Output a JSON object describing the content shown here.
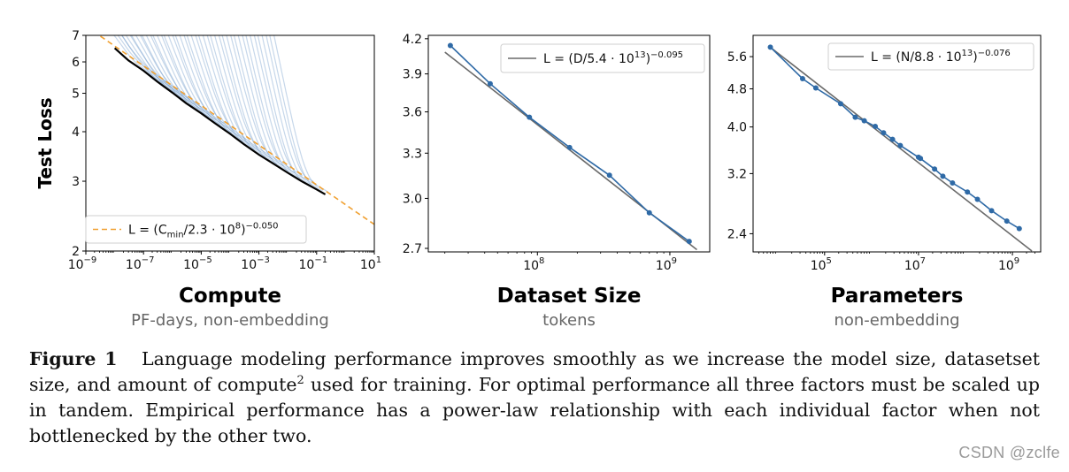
{
  "chart_data": [
    {
      "type": "line",
      "xscale": "log",
      "yscale": "log",
      "xlim": [
        1e-09,
        10
      ],
      "ylim": [
        2,
        7
      ],
      "x_ticks": [
        {
          "value": 1e-09,
          "mantissa": "10",
          "exp": "−9"
        },
        {
          "value": 1e-07,
          "mantissa": "10",
          "exp": "−7"
        },
        {
          "value": 1e-05,
          "mantissa": "10",
          "exp": "−5"
        },
        {
          "value": 0.001,
          "mantissa": "10",
          "exp": "−3"
        },
        {
          "value": 0.1,
          "mantissa": "10",
          "exp": "−1"
        },
        {
          "value": 10,
          "mantissa": "10",
          "exp": "1"
        }
      ],
      "y_ticks": [
        {
          "value": 2,
          "label": "2"
        },
        {
          "value": 3,
          "label": "3"
        },
        {
          "value": 4,
          "label": "4"
        },
        {
          "value": 5,
          "label": "5"
        },
        {
          "value": 6,
          "label": "6"
        },
        {
          "value": 7,
          "label": "7"
        }
      ],
      "ylabel": "Test Loss",
      "xlabel": "Compute",
      "sublabel": "PF-days, non-embedding",
      "legend": {
        "placement": "lower-left",
        "label": {
          "pre": "L = (C",
          "sub": "min",
          "mid": "/2.3 · 10",
          "sup1": "8",
          "post": ")",
          "sup2": "−0.050"
        }
      },
      "fit": {
        "c": 230000000.0,
        "alpha": 0.05,
        "x_range": [
          1e-09,
          10
        ],
        "color": "#f0a030",
        "style": "dashed"
      },
      "frontier": {
        "color": "#000000",
        "x": [
          1e-08,
          3e-08,
          1e-07,
          3e-07,
          1e-06,
          3e-06,
          1e-05,
          3e-05,
          0.0001,
          0.0003,
          0.001,
          0.003,
          0.01,
          0.03,
          0.1,
          0.2
        ],
        "y": [
          6.5,
          6.05,
          5.7,
          5.35,
          5.02,
          4.72,
          4.45,
          4.2,
          3.95,
          3.72,
          3.5,
          3.33,
          3.15,
          3.0,
          2.86,
          2.78
        ]
      },
      "training_curves": {
        "color": "#5b8cc4",
        "count": 44,
        "description_free": true
      }
    },
    {
      "type": "line",
      "xscale": "log",
      "yscale": "log",
      "xlim": [
        15000000.0,
        2000000000.0
      ],
      "ylim": [
        2.68,
        4.23
      ],
      "x_ticks": [
        {
          "value": 100000000.0,
          "mantissa": "10",
          "exp": "8"
        },
        {
          "value": 1000000000.0,
          "mantissa": "10",
          "exp": "9"
        }
      ],
      "y_ticks": [
        {
          "value": 2.7,
          "label": "2.7"
        },
        {
          "value": 3.0,
          "label": "3.0"
        },
        {
          "value": 3.3,
          "label": "3.3"
        },
        {
          "value": 3.6,
          "label": "3.6"
        },
        {
          "value": 3.9,
          "label": "3.9"
        },
        {
          "value": 4.2,
          "label": "4.2"
        }
      ],
      "xlabel": "Dataset Size",
      "sublabel": "tokens",
      "legend": {
        "placement": "top-right",
        "label": {
          "pre": "L = (D/5.4 · 10",
          "sup1": "13",
          "post": ")",
          "sup2": "−0.095"
        }
      },
      "fit": {
        "c": 54000000000000.0,
        "alpha": 0.095,
        "x_range": [
          20000000.0,
          1600000000.0
        ],
        "color": "#6a6a6a"
      },
      "series": [
        {
          "name": "data",
          "color": "#2f6aa6",
          "x": [
            22000000.0,
            44000000.0,
            87000000.0,
            175000000.0,
            350000000.0,
            700000000.0,
            1400000000.0
          ],
          "y": [
            4.14,
            3.82,
            3.56,
            3.34,
            3.15,
            2.91,
            2.74
          ]
        }
      ]
    },
    {
      "type": "line",
      "xscale": "log",
      "yscale": "log",
      "xlim": [
        3000.0,
        4000000000.0
      ],
      "ylim": [
        2.2,
        6.2
      ],
      "x_ticks": [
        {
          "value": 100000.0,
          "mantissa": "10",
          "exp": "5"
        },
        {
          "value": 10000000.0,
          "mantissa": "10",
          "exp": "7"
        },
        {
          "value": 1000000000.0,
          "mantissa": "10",
          "exp": "9"
        }
      ],
      "y_ticks": [
        {
          "value": 2.4,
          "label": "2.4"
        },
        {
          "value": 3.2,
          "label": "3.2"
        },
        {
          "value": 4.0,
          "label": "4.0"
        },
        {
          "value": 4.8,
          "label": "4.8"
        },
        {
          "value": 5.6,
          "label": "5.6"
        }
      ],
      "xlabel": "Parameters",
      "sublabel": "non-embedding",
      "legend": {
        "placement": "top-right",
        "label": {
          "pre": "L = (N/8.8 · 10",
          "sup1": "13",
          "post": ")",
          "sup2": "−0.076"
        }
      },
      "fit": {
        "c": 88000000000000.0,
        "alpha": 0.076,
        "x_range": [
          7000.0,
          2600000000.0
        ],
        "color": "#6a6a6a"
      },
      "series": [
        {
          "name": "data",
          "color": "#2f6aa6",
          "x": [
            7000.0,
            34000.0,
            65000.0,
            220000.0,
            450000.0,
            700000.0,
            1200000.0,
            1800000.0,
            2800000.0,
            4100000.0,
            10000000.0,
            11000000.0,
            22000000.0,
            33000000.0,
            53000000.0,
            110000000.0,
            180000000.0,
            360000000.0,
            760000000.0,
            1400000000.0
          ],
          "y": [
            5.86,
            5.04,
            4.82,
            4.47,
            4.19,
            4.12,
            4.01,
            3.89,
            3.77,
            3.66,
            3.46,
            3.44,
            3.27,
            3.16,
            3.06,
            2.93,
            2.83,
            2.68,
            2.55,
            2.46
          ]
        }
      ]
    }
  ],
  "caption": {
    "label": "Figure 1",
    "text_1": "Language modeling performance improves smoothly as we increase the model size, datasetset size, and amount of compute",
    "sup": "2",
    "text_2": " used for training.  For optimal performance all three factors must be scaled up in tandem.  Empirical performance has a power-law relationship with each individual factor when not bottlenecked by the other two."
  },
  "watermark": "CSDN @zclfe",
  "colors": {
    "fit_orange": "#f0a030",
    "curve_blue": "#5b8cc4",
    "data_blue": "#2f6aa6",
    "fit_gray": "#6a6a6a"
  }
}
